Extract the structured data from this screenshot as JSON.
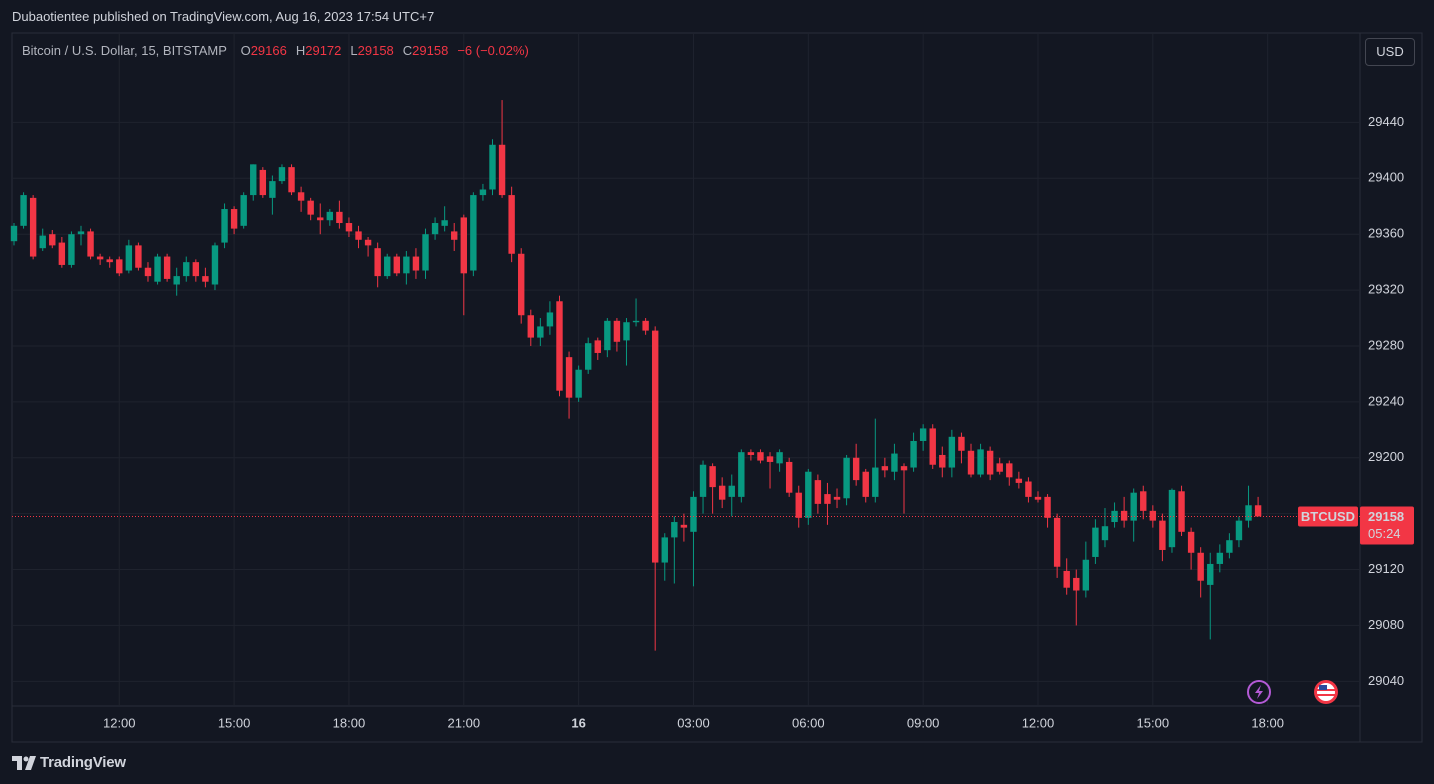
{
  "header": {
    "publisher": "Dubaotientee published on TradingView.com, Aug 16, 2023 17:54 UTC+7",
    "currency": "USD",
    "brand": "TradingView"
  },
  "chart_data": {
    "type": "candlestick",
    "symbol": "Bitcoin / U.S. Dollar, 15, BITSTAMP",
    "ohlc_letters": [
      "O",
      "H",
      "L",
      "C"
    ],
    "change_label": "−6 (−0.02%)",
    "price_tag": "BTCUSD",
    "countdown": "05:24",
    "up_color": "#089981",
    "down_color": "#f23645",
    "ylim": [
      28998,
      29504
    ],
    "yticks": [
      29040,
      29080,
      29120,
      29160,
      29200,
      29240,
      29280,
      29320,
      29360,
      29400,
      29440
    ],
    "grid": true,
    "categories": [
      null,
      null,
      null,
      null,
      null,
      null,
      null,
      null,
      null,
      null,
      null,
      "12:00",
      null,
      null,
      null,
      null,
      null,
      null,
      null,
      null,
      null,
      null,
      null,
      "15:00",
      null,
      null,
      null,
      null,
      null,
      null,
      null,
      null,
      null,
      null,
      null,
      "18:00",
      null,
      null,
      null,
      null,
      null,
      null,
      null,
      null,
      null,
      null,
      null,
      "21:00",
      null,
      null,
      null,
      null,
      null,
      null,
      null,
      null,
      null,
      null,
      null,
      "16",
      null,
      null,
      null,
      null,
      null,
      null,
      null,
      null,
      null,
      null,
      null,
      "03:00",
      null,
      null,
      null,
      null,
      null,
      null,
      null,
      null,
      null,
      null,
      null,
      "06:00",
      null,
      null,
      null,
      null,
      null,
      null,
      null,
      null,
      null,
      null,
      null,
      "09:00",
      null,
      null,
      null,
      null,
      null,
      null,
      null,
      null,
      null,
      null,
      null,
      "12:00",
      null,
      null,
      null,
      null,
      null,
      null,
      null,
      null,
      null,
      null,
      null,
      "15:00",
      null,
      null,
      null,
      null,
      null,
      null,
      null,
      null,
      null,
      null,
      null,
      "18:00"
    ],
    "candles": [
      [
        29355,
        29368,
        29352,
        29366
      ],
      [
        29366,
        29390,
        29364,
        29388
      ],
      [
        29386,
        29388,
        29342,
        29344
      ],
      [
        29350,
        29364,
        29348,
        29359
      ],
      [
        29360,
        29363,
        29350,
        29352
      ],
      [
        29354,
        29358,
        29336,
        29338
      ],
      [
        29338,
        29362,
        29336,
        29360
      ],
      [
        29360,
        29366,
        29352,
        29362
      ],
      [
        29362,
        29364,
        29342,
        29344
      ],
      [
        29344,
        29346,
        29338,
        29342
      ],
      [
        29342,
        29344,
        29336,
        29340
      ],
      [
        29342,
        29344,
        29330,
        29332
      ],
      [
        29334,
        29356,
        29332,
        29352
      ],
      [
        29352,
        29354,
        29334,
        29336
      ],
      [
        29336,
        29340,
        29326,
        29330
      ],
      [
        29326,
        29346,
        29324,
        29344
      ],
      [
        29344,
        29346,
        29326,
        29328
      ],
      [
        29324,
        29336,
        29316,
        29330
      ],
      [
        29330,
        29344,
        29326,
        29340
      ],
      [
        29340,
        29342,
        29326,
        29330
      ],
      [
        29330,
        29336,
        29322,
        29326
      ],
      [
        29324,
        29354,
        29320,
        29352
      ],
      [
        29354,
        29382,
        29350,
        29378
      ],
      [
        29378,
        29380,
        29360,
        29364
      ],
      [
        29366,
        29390,
        29364,
        29388
      ],
      [
        29388,
        29410,
        29384,
        29410
      ],
      [
        29406,
        29408,
        29386,
        29388
      ],
      [
        29386,
        29402,
        29374,
        29398
      ],
      [
        29398,
        29410,
        29396,
        29408
      ],
      [
        29408,
        29410,
        29388,
        29390
      ],
      [
        29390,
        29394,
        29376,
        29384
      ],
      [
        29384,
        29386,
        29370,
        29374
      ],
      [
        29372,
        29382,
        29360,
        29370
      ],
      [
        29370,
        29378,
        29366,
        29376
      ],
      [
        29376,
        29384,
        29364,
        29368
      ],
      [
        29368,
        29372,
        29358,
        29362
      ],
      [
        29362,
        29366,
        29350,
        29356
      ],
      [
        29356,
        29358,
        29344,
        29352
      ],
      [
        29350,
        29354,
        29322,
        29330
      ],
      [
        29330,
        29346,
        29328,
        29344
      ],
      [
        29344,
        29346,
        29330,
        29332
      ],
      [
        29332,
        29348,
        29324,
        29344
      ],
      [
        29344,
        29350,
        29328,
        29334
      ],
      [
        29334,
        29364,
        29328,
        29360
      ],
      [
        29360,
        29372,
        29356,
        29368
      ],
      [
        29366,
        29380,
        29362,
        29370
      ],
      [
        29362,
        29368,
        29348,
        29356
      ],
      [
        29372,
        29374,
        29302,
        29332
      ],
      [
        29334,
        29390,
        29330,
        29388
      ],
      [
        29388,
        29396,
        29384,
        29392
      ],
      [
        29392,
        29428,
        29388,
        29424
      ],
      [
        29424,
        29456,
        29386,
        29388
      ],
      [
        29388,
        29394,
        29340,
        29346
      ],
      [
        29346,
        29350,
        29296,
        29302
      ],
      [
        29302,
        29306,
        29280,
        29286
      ],
      [
        29286,
        29300,
        29280,
        29294
      ],
      [
        29294,
        29312,
        29288,
        29304
      ],
      [
        29312,
        29316,
        29244,
        29248
      ],
      [
        29272,
        29276,
        29228,
        29243
      ],
      [
        29243,
        29266,
        29240,
        29263
      ],
      [
        29263,
        29286,
        29260,
        29282
      ],
      [
        29284,
        29286,
        29270,
        29275
      ],
      [
        29277,
        29300,
        29272,
        29298
      ],
      [
        29298,
        29300,
        29276,
        29283
      ],
      [
        29284,
        29300,
        29266,
        29297
      ],
      [
        29297,
        29314,
        29294,
        29298
      ],
      [
        29298,
        29300,
        29288,
        29291
      ],
      [
        29291,
        29294,
        29062,
        29125
      ],
      [
        29125,
        29146,
        29112,
        29143
      ],
      [
        29143,
        29158,
        29110,
        29154
      ],
      [
        29152,
        29160,
        29140,
        29150
      ],
      [
        29147,
        29176,
        29108,
        29172
      ],
      [
        29172,
        29198,
        29160,
        29195
      ],
      [
        29194,
        29196,
        29160,
        29179
      ],
      [
        29180,
        29186,
        29164,
        29170
      ],
      [
        29172,
        29188,
        29158,
        29180
      ],
      [
        29172,
        29206,
        29168,
        29204
      ],
      [
        29204,
        29206,
        29198,
        29202
      ],
      [
        29204,
        29206,
        29196,
        29198
      ],
      [
        29201,
        29204,
        29178,
        29197
      ],
      [
        29196,
        29206,
        29190,
        29204
      ],
      [
        29197,
        29200,
        29172,
        29175
      ],
      [
        29175,
        29180,
        29150,
        29157
      ],
      [
        29157,
        29192,
        29152,
        29190
      ],
      [
        29184,
        29188,
        29160,
        29167
      ],
      [
        29174,
        29182,
        29152,
        29167
      ],
      [
        29172,
        29178,
        29164,
        29170
      ],
      [
        29171,
        29202,
        29166,
        29200
      ],
      [
        29200,
        29210,
        29180,
        29184
      ],
      [
        29190,
        29192,
        29168,
        29172
      ],
      [
        29172,
        29228,
        29168,
        29193
      ],
      [
        29194,
        29200,
        29186,
        29191
      ],
      [
        29190,
        29210,
        29184,
        29203
      ],
      [
        29194,
        29196,
        29160,
        29191
      ],
      [
        29193,
        29218,
        29190,
        29212
      ],
      [
        29212,
        29224,
        29205,
        29221
      ],
      [
        29221,
        29224,
        29192,
        29195
      ],
      [
        29202,
        29208,
        29186,
        29193
      ],
      [
        29193,
        29220,
        29186,
        29215
      ],
      [
        29215,
        29218,
        29196,
        29205
      ],
      [
        29205,
        29210,
        29186,
        29188
      ],
      [
        29188,
        29210,
        29186,
        29206
      ],
      [
        29205,
        29208,
        29184,
        29188
      ],
      [
        29196,
        29200,
        29188,
        29190
      ],
      [
        29196,
        29198,
        29180,
        29186
      ],
      [
        29185,
        29190,
        29178,
        29182
      ],
      [
        29183,
        29186,
        29168,
        29172
      ],
      [
        29172,
        29176,
        29168,
        29170
      ],
      [
        29172,
        29174,
        29150,
        29157
      ],
      [
        29157,
        29160,
        29114,
        29122
      ],
      [
        29119,
        29128,
        29102,
        29107
      ],
      [
        29114,
        29120,
        29080,
        29105
      ],
      [
        29105,
        29140,
        29100,
        29127
      ],
      [
        29129,
        29156,
        29124,
        29150
      ],
      [
        29141,
        29164,
        29136,
        29151
      ],
      [
        29154,
        29168,
        29150,
        29162
      ],
      [
        29162,
        29172,
        29150,
        29155
      ],
      [
        29155,
        29178,
        29140,
        29175
      ],
      [
        29176,
        29180,
        29156,
        29162
      ],
      [
        29162,
        29166,
        29150,
        29155
      ],
      [
        29155,
        29160,
        29126,
        29134
      ],
      [
        29136,
        29178,
        29132,
        29177
      ],
      [
        29176,
        29180,
        29144,
        29147
      ],
      [
        29147,
        29150,
        29120,
        29132
      ],
      [
        29132,
        29136,
        29100,
        29112
      ],
      [
        29109,
        29132,
        29070,
        29124
      ],
      [
        29124,
        29138,
        29118,
        29132
      ],
      [
        29132,
        29146,
        29128,
        29141
      ],
      [
        29141,
        29158,
        29136,
        29155
      ],
      [
        29155,
        29180,
        29150,
        29166
      ],
      [
        29166,
        29172,
        29158,
        29158
      ],
      null
    ]
  }
}
